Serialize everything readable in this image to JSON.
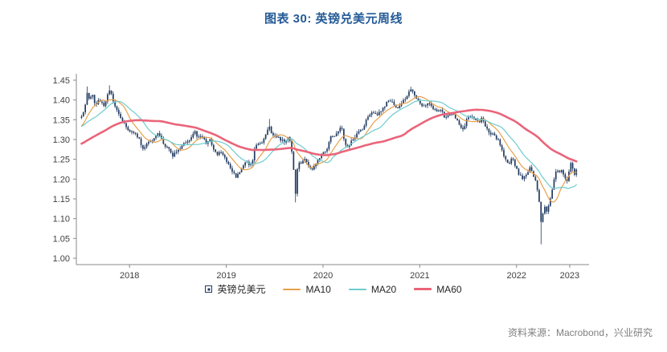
{
  "title": "图表 30: 英镑兑美元周线",
  "source": "资料来源：Macrobond，兴业研究",
  "colors": {
    "title": "#235a97",
    "axis": "#8a8a8a",
    "tick_text": "#404040",
    "candle": "#203a60",
    "ma10": "#e8a04b",
    "ma20": "#6cccce",
    "ma60": "#ea6479",
    "legend_text": "#262626",
    "source_text": "#808080"
  },
  "legend": [
    {
      "key": "gbpusd",
      "label": "英镑兑美元",
      "type": "candle",
      "color": "#203a60"
    },
    {
      "key": "ma10",
      "label": "MA10",
      "type": "line",
      "color": "#e8a04b",
      "width": 2
    },
    {
      "key": "ma20",
      "label": "MA20",
      "type": "line",
      "color": "#6cccce",
      "width": 2
    },
    {
      "key": "ma60",
      "label": "MA60",
      "type": "line",
      "color": "#ea6479",
      "width": 3
    }
  ],
  "chart_data": {
    "type": "candlestick",
    "title": "图表 30: 英镑兑美元周线",
    "series_label": "英镑兑美元",
    "frequency": "weekly",
    "xlim": [
      2017.95,
      2023.25
    ],
    "ylim": [
      1.0,
      1.45
    ],
    "y_ticks": [
      1.0,
      1.05,
      1.1,
      1.15,
      1.2,
      1.25,
      1.3,
      1.35,
      1.4,
      1.45
    ],
    "x_ticks": [
      {
        "label": "2018",
        "x": 2018.5
      },
      {
        "label": "2019",
        "x": 2019.5
      },
      {
        "label": "2020",
        "x": 2020.5
      },
      {
        "label": "2021",
        "x": 2021.5
      },
      {
        "label": "2022",
        "x": 2022.5
      },
      {
        "label": "2023",
        "x": 2023.05
      }
    ],
    "grid": false,
    "legend_position": "bottom-center",
    "draw_from": 2017.99,
    "moving_averages": [
      {
        "name": "MA10",
        "window": 10,
        "color": "#e8a04b",
        "width": 1.2
      },
      {
        "name": "MA20",
        "window": 20,
        "color": "#6cccce",
        "width": 1.2
      },
      {
        "name": "MA60",
        "window": 60,
        "color": "#ea6479",
        "width": 2.6
      }
    ],
    "anchors": [
      [
        2016.85,
        1.225
      ],
      [
        2016.95,
        1.245
      ],
      [
        2017.05,
        1.235
      ],
      [
        2017.15,
        1.248
      ],
      [
        2017.25,
        1.256
      ],
      [
        2017.35,
        1.285
      ],
      [
        2017.45,
        1.296
      ],
      [
        2017.55,
        1.306
      ],
      [
        2017.65,
        1.321
      ],
      [
        2017.72,
        1.352
      ],
      [
        2017.78,
        1.328
      ],
      [
        2017.85,
        1.313
      ],
      [
        2017.92,
        1.335
      ],
      [
        2017.97,
        1.351
      ],
      [
        2018.0,
        1.357
      ],
      [
        2018.03,
        1.374
      ],
      [
        2018.06,
        1.415
      ],
      [
        2018.09,
        1.402
      ],
      [
        2018.12,
        1.411
      ],
      [
        2018.15,
        1.382
      ],
      [
        2018.18,
        1.403
      ],
      [
        2018.21,
        1.394
      ],
      [
        2018.24,
        1.386
      ],
      [
        2018.27,
        1.412
      ],
      [
        2018.3,
        1.426
      ],
      [
        2018.33,
        1.399
      ],
      [
        2018.36,
        1.379
      ],
      [
        2018.4,
        1.355
      ],
      [
        2018.44,
        1.341
      ],
      [
        2018.48,
        1.327
      ],
      [
        2018.52,
        1.32
      ],
      [
        2018.56,
        1.312
      ],
      [
        2018.6,
        1.301
      ],
      [
        2018.63,
        1.278
      ],
      [
        2018.67,
        1.286
      ],
      [
        2018.71,
        1.293
      ],
      [
        2018.75,
        1.303
      ],
      [
        2018.79,
        1.317
      ],
      [
        2018.83,
        1.299
      ],
      [
        2018.87,
        1.283
      ],
      [
        2018.91,
        1.278
      ],
      [
        2018.94,
        1.259
      ],
      [
        2018.98,
        1.269
      ],
      [
        2019.02,
        1.277
      ],
      [
        2019.06,
        1.289
      ],
      [
        2019.1,
        1.294
      ],
      [
        2019.14,
        1.307
      ],
      [
        2019.17,
        1.321
      ],
      [
        2019.21,
        1.303
      ],
      [
        2019.25,
        1.306
      ],
      [
        2019.29,
        1.292
      ],
      [
        2019.33,
        1.301
      ],
      [
        2019.37,
        1.271
      ],
      [
        2019.41,
        1.259
      ],
      [
        2019.44,
        1.271
      ],
      [
        2019.48,
        1.255
      ],
      [
        2019.52,
        1.241
      ],
      [
        2019.56,
        1.217
      ],
      [
        2019.6,
        1.207
      ],
      [
        2019.63,
        1.215
      ],
      [
        2019.67,
        1.23
      ],
      [
        2019.71,
        1.249
      ],
      [
        2019.74,
        1.231
      ],
      [
        2019.77,
        1.247
      ],
      [
        2019.8,
        1.284
      ],
      [
        2019.83,
        1.286
      ],
      [
        2019.87,
        1.292
      ],
      [
        2019.9,
        1.303
      ],
      [
        2019.94,
        1.334
      ],
      [
        2019.98,
        1.311
      ],
      [
        2020.02,
        1.308
      ],
      [
        2020.06,
        1.301
      ],
      [
        2020.1,
        1.293
      ],
      [
        2020.14,
        1.306
      ],
      [
        2020.17,
        1.289
      ],
      [
        2020.195,
        1.228
      ],
      [
        2020.215,
        1.161
      ],
      [
        2020.24,
        1.247
      ],
      [
        2020.27,
        1.241
      ],
      [
        2020.31,
        1.253
      ],
      [
        2020.35,
        1.233
      ],
      [
        2020.38,
        1.219
      ],
      [
        2020.42,
        1.237
      ],
      [
        2020.46,
        1.253
      ],
      [
        2020.5,
        1.265
      ],
      [
        2020.54,
        1.273
      ],
      [
        2020.58,
        1.308
      ],
      [
        2020.62,
        1.311
      ],
      [
        2020.66,
        1.324
      ],
      [
        2020.69,
        1.336
      ],
      [
        2020.72,
        1.293
      ],
      [
        2020.75,
        1.277
      ],
      [
        2020.79,
        1.295
      ],
      [
        2020.83,
        1.306
      ],
      [
        2020.87,
        1.321
      ],
      [
        2020.91,
        1.324
      ],
      [
        2020.94,
        1.346
      ],
      [
        2020.98,
        1.359
      ],
      [
        2021.02,
        1.37
      ],
      [
        2021.06,
        1.361
      ],
      [
        2021.1,
        1.375
      ],
      [
        2021.14,
        1.387
      ],
      [
        2021.18,
        1.401
      ],
      [
        2021.22,
        1.391
      ],
      [
        2021.26,
        1.379
      ],
      [
        2021.3,
        1.387
      ],
      [
        2021.34,
        1.4
      ],
      [
        2021.38,
        1.417
      ],
      [
        2021.41,
        1.424
      ],
      [
        2021.45,
        1.413
      ],
      [
        2021.49,
        1.393
      ],
      [
        2021.53,
        1.38
      ],
      [
        2021.57,
        1.391
      ],
      [
        2021.61,
        1.387
      ],
      [
        2021.64,
        1.376
      ],
      [
        2021.68,
        1.369
      ],
      [
        2021.72,
        1.376
      ],
      [
        2021.76,
        1.354
      ],
      [
        2021.8,
        1.363
      ],
      [
        2021.84,
        1.369
      ],
      [
        2021.88,
        1.351
      ],
      [
        2021.91,
        1.335
      ],
      [
        2021.95,
        1.327
      ],
      [
        2021.99,
        1.353
      ],
      [
        2022.03,
        1.359
      ],
      [
        2022.07,
        1.355
      ],
      [
        2022.11,
        1.341
      ],
      [
        2022.14,
        1.356
      ],
      [
        2022.18,
        1.332
      ],
      [
        2022.22,
        1.317
      ],
      [
        2022.26,
        1.311
      ],
      [
        2022.3,
        1.303
      ],
      [
        2022.34,
        1.283
      ],
      [
        2022.38,
        1.25
      ],
      [
        2022.42,
        1.234
      ],
      [
        2022.45,
        1.258
      ],
      [
        2022.49,
        1.23
      ],
      [
        2022.53,
        1.211
      ],
      [
        2022.57,
        1.201
      ],
      [
        2022.61,
        1.216
      ],
      [
        2022.64,
        1.228
      ],
      [
        2022.68,
        1.207
      ],
      [
        2022.71,
        1.183
      ],
      [
        2022.735,
        1.144
      ],
      [
        2022.755,
        1.087
      ],
      [
        2022.775,
        1.118
      ],
      [
        2022.79,
        1.133
      ],
      [
        2022.81,
        1.113
      ],
      [
        2022.84,
        1.139
      ],
      [
        2022.86,
        1.163
      ],
      [
        2022.88,
        1.185
      ],
      [
        2022.9,
        1.215
      ],
      [
        2022.92,
        1.23
      ],
      [
        2022.94,
        1.214
      ],
      [
        2022.96,
        1.226
      ],
      [
        2022.98,
        1.209
      ],
      [
        2023.0,
        1.206
      ],
      [
        2023.02,
        1.193
      ],
      [
        2023.04,
        1.213
      ],
      [
        2023.06,
        1.241
      ],
      [
        2023.08,
        1.229
      ],
      [
        2023.1,
        1.208
      ],
      [
        2023.12,
        1.221
      ]
    ],
    "low_overrides": [
      [
        2020.215,
        1.141
      ],
      [
        2022.755,
        1.035
      ]
    ],
    "high_overrides": [
      [
        2018.06,
        1.434
      ],
      [
        2018.3,
        1.437
      ],
      [
        2019.94,
        1.352
      ]
    ]
  }
}
